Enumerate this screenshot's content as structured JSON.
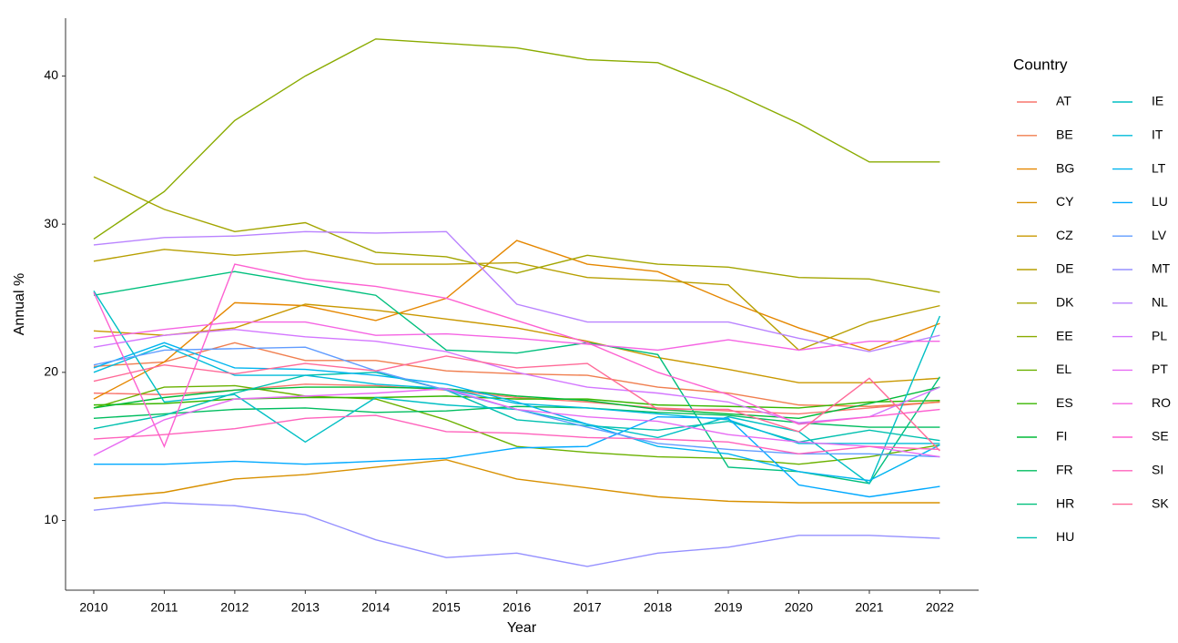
{
  "chart_data": {
    "type": "line",
    "x_label": "Year",
    "y_label": "Annual %",
    "legend_title": "Country",
    "x": [
      2010,
      2011,
      2012,
      2013,
      2014,
      2015,
      2016,
      2017,
      2018,
      2019,
      2020,
      2021,
      2022
    ],
    "xlim": [
      2009.6,
      2022.55
    ],
    "xticks": [
      2010,
      2011,
      2012,
      2013,
      2014,
      2015,
      2016,
      2017,
      2018,
      2019,
      2020,
      2021,
      2022
    ],
    "ylim": [
      5.3,
      43.9
    ],
    "yticks": [
      10,
      20,
      30,
      40
    ],
    "grid": false,
    "legend_position": "right",
    "series": [
      {
        "name": "AT",
        "color": "#F8766D",
        "values": [
          18.6,
          18.5,
          18.8,
          19.2,
          19.1,
          18.8,
          18.3,
          18.0,
          17.6,
          17.4,
          17.2,
          17.6,
          18.0
        ]
      },
      {
        "name": "BE",
        "color": "#F07E4F",
        "values": [
          20.4,
          20.7,
          22.0,
          20.8,
          20.8,
          20.1,
          19.9,
          19.8,
          19.0,
          18.6,
          17.8,
          17.7,
          18.0
        ]
      },
      {
        "name": "BG",
        "color": "#E58700",
        "values": [
          18.2,
          20.7,
          24.7,
          24.5,
          23.5,
          25.0,
          28.9,
          27.3,
          26.8,
          24.8,
          23.0,
          21.5,
          23.3
        ]
      },
      {
        "name": "CY",
        "color": "#D89000",
        "values": [
          11.5,
          11.9,
          12.8,
          13.1,
          13.6,
          14.1,
          12.8,
          12.2,
          11.6,
          11.3,
          11.2,
          11.2,
          11.2
        ]
      },
      {
        "name": "CZ",
        "color": "#C99800",
        "values": [
          22.8,
          22.5,
          23.0,
          24.6,
          24.2,
          23.6,
          23.0,
          22.1,
          21.0,
          20.2,
          19.3,
          19.3,
          19.6
        ]
      },
      {
        "name": "DE",
        "color": "#B79F00",
        "values": [
          27.5,
          28.3,
          27.9,
          28.2,
          27.3,
          27.3,
          27.4,
          26.4,
          26.2,
          25.9,
          21.5,
          23.4,
          24.5
        ]
      },
      {
        "name": "DK",
        "color": "#A3A500",
        "values": [
          33.2,
          31.0,
          29.5,
          30.1,
          28.1,
          27.8,
          26.7,
          27.9,
          27.3,
          27.1,
          26.4,
          26.3,
          25.4
        ]
      },
      {
        "name": "EE",
        "color": "#8AAB00",
        "values": [
          29.0,
          32.2,
          37.0,
          40.0,
          42.5,
          42.2,
          41.9,
          41.1,
          40.9,
          39.0,
          36.8,
          34.2,
          34.2
        ]
      },
      {
        "name": "EL",
        "color": "#6BB100",
        "values": [
          17.6,
          19.0,
          19.1,
          18.4,
          18.2,
          16.8,
          15.0,
          14.6,
          14.3,
          14.2,
          13.8,
          14.3,
          15.1
        ]
      },
      {
        "name": "ES",
        "color": "#39B600",
        "values": [
          17.8,
          17.9,
          18.2,
          18.3,
          18.3,
          18.4,
          18.2,
          18.2,
          17.8,
          17.7,
          17.6,
          18.0,
          18.1
        ]
      },
      {
        "name": "FI",
        "color": "#00BA38",
        "values": [
          17.6,
          18.3,
          18.8,
          19.0,
          19.0,
          18.9,
          18.4,
          18.1,
          17.5,
          17.2,
          16.9,
          17.9,
          19.0
        ]
      },
      {
        "name": "FR",
        "color": "#00BD5F",
        "values": [
          16.9,
          17.2,
          17.5,
          17.6,
          17.3,
          17.4,
          17.7,
          17.6,
          17.3,
          17.1,
          16.6,
          16.3,
          16.3
        ]
      },
      {
        "name": "HR",
        "color": "#00BF7D",
        "values": [
          25.2,
          26.0,
          26.8,
          26.0,
          25.2,
          21.5,
          21.3,
          22.0,
          21.2,
          13.6,
          13.3,
          12.5,
          19.7
        ]
      },
      {
        "name": "HU",
        "color": "#00C0AF",
        "values": [
          16.2,
          17.1,
          18.6,
          19.8,
          20.0,
          18.8,
          16.8,
          16.4,
          16.1,
          16.7,
          15.3,
          16.1,
          15.4
        ]
      },
      {
        "name": "IE",
        "color": "#00BFC4",
        "values": [
          25.5,
          18.0,
          18.5,
          15.3,
          18.3,
          17.8,
          17.5,
          16.5,
          15.6,
          17.0,
          16.0,
          12.5,
          23.8
        ]
      },
      {
        "name": "IT",
        "color": "#00BBDA",
        "values": [
          20.0,
          21.8,
          19.8,
          19.8,
          19.2,
          18.9,
          17.9,
          17.6,
          17.2,
          16.8,
          15.2,
          15.2,
          15.2
        ]
      },
      {
        "name": "LT",
        "color": "#00B4EF",
        "values": [
          20.3,
          22.0,
          20.3,
          20.2,
          19.8,
          19.2,
          18.0,
          16.5,
          15.0,
          14.5,
          13.3,
          12.7,
          15.1
        ]
      },
      {
        "name": "LU",
        "color": "#00A9FF",
        "values": [
          13.8,
          13.8,
          14.0,
          13.8,
          14.0,
          14.2,
          14.9,
          15.0,
          17.0,
          16.9,
          12.4,
          11.6,
          12.3
        ]
      },
      {
        "name": "LV",
        "color": "#619CFF",
        "values": [
          20.5,
          21.5,
          21.6,
          21.7,
          20.1,
          18.8,
          17.5,
          16.3,
          15.2,
          14.8,
          14.5,
          14.5,
          14.3
        ]
      },
      {
        "name": "MT",
        "color": "#9590FF",
        "values": [
          10.7,
          11.2,
          11.0,
          10.4,
          8.7,
          7.5,
          7.8,
          6.9,
          7.8,
          8.2,
          9.0,
          9.0,
          8.8
        ]
      },
      {
        "name": "NL",
        "color": "#B983FF",
        "values": [
          28.6,
          29.1,
          29.2,
          29.5,
          29.4,
          29.5,
          24.6,
          23.4,
          23.4,
          23.4,
          22.3,
          21.4,
          22.5
        ]
      },
      {
        "name": "PL",
        "color": "#D376FF",
        "values": [
          21.7,
          22.5,
          22.9,
          22.4,
          22.1,
          21.4,
          20.0,
          19.0,
          18.6,
          18.0,
          16.6,
          17.0,
          19.0
        ]
      },
      {
        "name": "PT",
        "color": "#E76BF3",
        "values": [
          14.4,
          16.8,
          18.2,
          18.4,
          18.6,
          18.9,
          17.5,
          17.0,
          16.7,
          15.8,
          15.3,
          15.0,
          14.3
        ]
      },
      {
        "name": "RO",
        "color": "#F564E3",
        "values": [
          22.3,
          22.9,
          23.4,
          23.4,
          22.5,
          22.6,
          22.3,
          21.9,
          21.5,
          22.2,
          21.5,
          22.1,
          22.1
        ]
      },
      {
        "name": "SE",
        "color": "#FD61D1",
        "values": [
          25.4,
          15.0,
          27.3,
          26.3,
          25.8,
          25.0,
          23.5,
          22.0,
          20.0,
          18.5,
          16.5,
          17.0,
          17.5
        ]
      },
      {
        "name": "SI",
        "color": "#FF62BC",
        "values": [
          15.5,
          15.8,
          16.2,
          16.9,
          17.1,
          16.0,
          15.9,
          15.6,
          15.5,
          15.3,
          14.5,
          15.0,
          14.8
        ]
      },
      {
        "name": "SK",
        "color": "#FF6A98",
        "values": [
          19.4,
          20.5,
          19.9,
          20.6,
          20.1,
          21.1,
          20.3,
          20.6,
          17.5,
          17.5,
          16.0,
          19.6,
          14.7
        ]
      }
    ]
  }
}
